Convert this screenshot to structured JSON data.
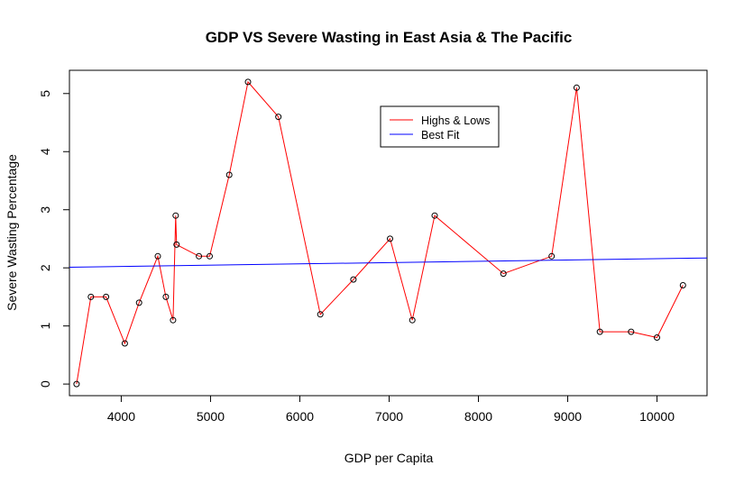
{
  "chart_data": {
    "type": "line",
    "title": "GDP VS Severe Wasting in East Asia & The Pacific",
    "xlabel": "GDP per Capita",
    "ylabel": "Severe Wasting Percentage",
    "xlim": [
      3420,
      10560
    ],
    "ylim": [
      -0.2,
      5.4
    ],
    "x_ticks": [
      4000,
      5000,
      6000,
      7000,
      8000,
      9000,
      10000
    ],
    "y_ticks": [
      0,
      1,
      2,
      3,
      4,
      5
    ],
    "grid": false,
    "legend_position": "top-center",
    "series": [
      {
        "name": "Highs & Lows",
        "color": "#ff0000",
        "markers": true,
        "marker_color": "#000000",
        "x": [
          3500,
          3660,
          3830,
          4040,
          4200,
          4410,
          4500,
          4580,
          4610,
          4620,
          4870,
          4990,
          5210,
          5420,
          5760,
          6230,
          6600,
          7010,
          7260,
          7510,
          8280,
          8820,
          9100,
          9360,
          9710,
          10000,
          10290
        ],
        "y": [
          0,
          1.5,
          1.5,
          0.7,
          1.4,
          2.2,
          1.5,
          1.1,
          2.9,
          2.4,
          2.2,
          2.2,
          3.6,
          5.2,
          4.6,
          1.2,
          1.8,
          2.5,
          1.1,
          2.9,
          1.9,
          2.2,
          5.1,
          0.9,
          0.9,
          0.8,
          1.7
        ]
      },
      {
        "name": "Best Fit",
        "color": "#0000ff",
        "markers": false,
        "x": [
          3420,
          10560
        ],
        "y": [
          2.01,
          2.17
        ]
      }
    ]
  }
}
